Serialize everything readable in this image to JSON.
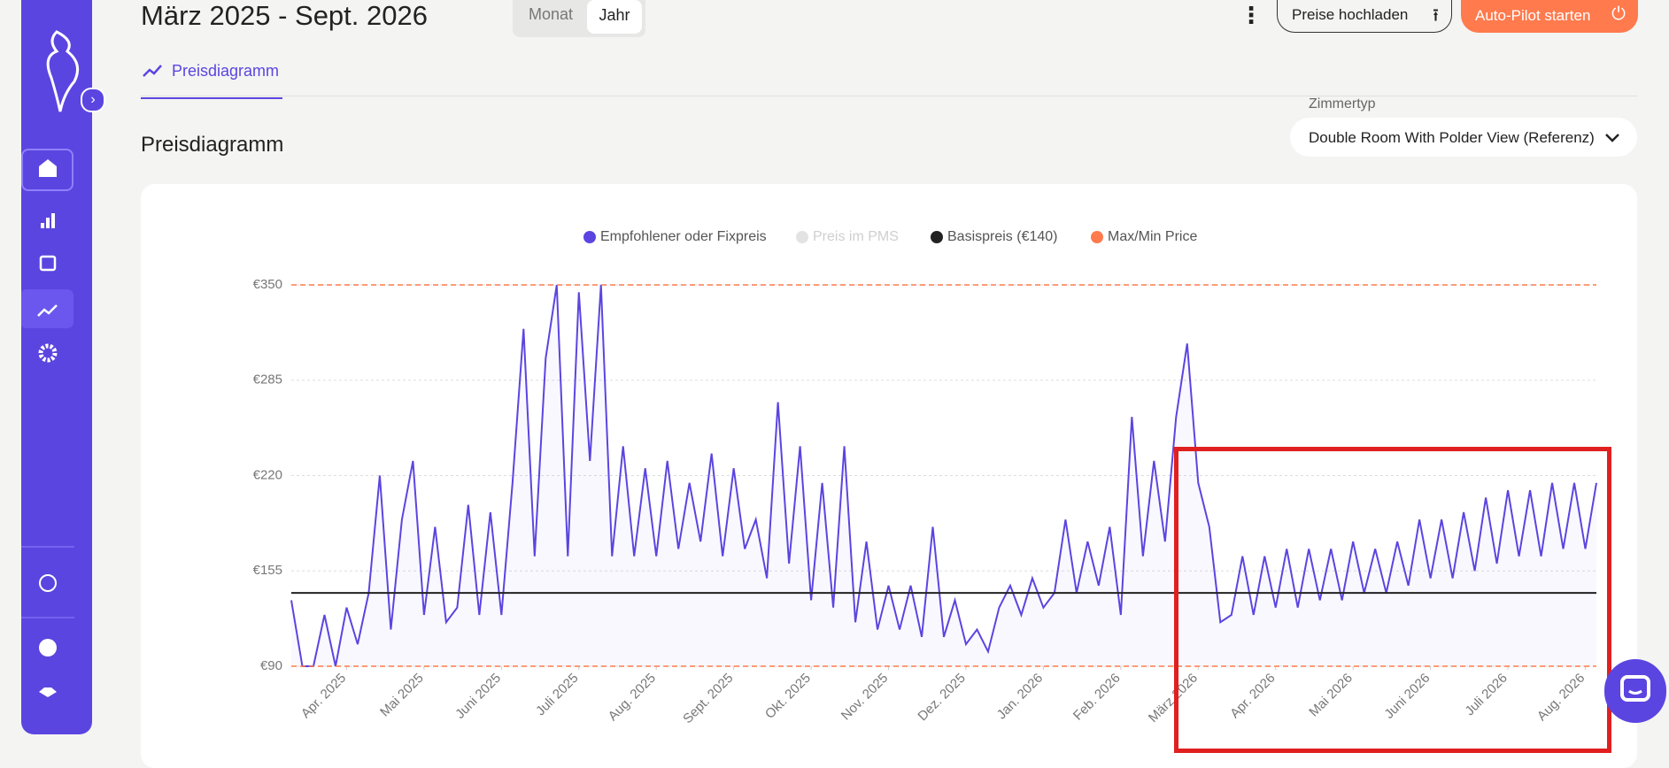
{
  "ui": {
    "date_range": "März 2025 - Sept. 2026",
    "view_toggle": [
      "Monat",
      "Jahr"
    ],
    "upload_button": "Preise hochladen",
    "autopilot_button": "Auto-Pilot starten",
    "tab": "Preisdiagramm",
    "section_title": "Preisdiagramm",
    "room_type_label": "Zimmertyp",
    "room_type_value": "Double Room With Polder View (Referenz)"
  },
  "chart_data": {
    "type": "line",
    "series": [
      {
        "name": "Empfohlener oder Fixpreis",
        "color": "#5b45e0",
        "values": [
          135,
          90,
          90,
          125,
          90,
          130,
          105,
          140,
          220,
          115,
          190,
          230,
          125,
          185,
          120,
          130,
          200,
          125,
          195,
          125,
          215,
          320,
          165,
          300,
          350,
          165,
          345,
          230,
          350,
          165,
          240,
          165,
          225,
          165,
          230,
          170,
          215,
          175,
          235,
          165,
          225,
          170,
          190,
          150,
          270,
          160,
          240,
          135,
          215,
          130,
          240,
          120,
          175,
          115,
          145,
          115,
          145,
          110,
          185,
          110,
          135,
          105,
          115,
          100,
          130,
          145,
          125,
          150,
          130,
          140,
          190,
          140,
          175,
          145,
          185,
          125,
          260,
          165,
          230,
          175,
          260,
          310,
          215,
          185,
          120,
          125,
          165,
          125,
          165,
          130,
          170,
          130,
          170,
          135,
          170,
          135,
          175,
          140,
          170,
          140,
          175,
          145,
          190,
          150,
          190,
          150,
          195,
          155,
          205,
          160,
          210,
          165,
          210,
          165,
          215,
          170,
          215,
          170,
          215
        ]
      },
      {
        "name": "Preis im PMS",
        "color": "#e3e3e3",
        "hidden": true
      },
      {
        "name": "Basispreis (€140)",
        "color": "#222222",
        "value": 140
      },
      {
        "name": "Max/Min Price",
        "color": "#ff7a4d",
        "values": [
          350,
          90
        ],
        "dashed": true
      }
    ],
    "xlim": [
      0,
      118
    ],
    "xticks": [
      {
        "value": 5,
        "label": "Apr. 2025"
      },
      {
        "value": 12,
        "label": "Mai 2025"
      },
      {
        "value": 19,
        "label": "Juni 2025"
      },
      {
        "value": 26,
        "label": "Juli 2025"
      },
      {
        "value": 33,
        "label": "Aug. 2025"
      },
      {
        "value": 40,
        "label": "Sept. 2025"
      },
      {
        "value": 47,
        "label": "Okt. 2025"
      },
      {
        "value": 54,
        "label": "Nov. 2025"
      },
      {
        "value": 61,
        "label": "Dez. 2025"
      },
      {
        "value": 68,
        "label": "Jan. 2026"
      },
      {
        "value": 75,
        "label": "Feb. 2026"
      },
      {
        "value": 82,
        "label": "März 2026"
      },
      {
        "value": 89,
        "label": "Apr. 2026"
      },
      {
        "value": 96,
        "label": "Mai 2026"
      },
      {
        "value": 103,
        "label": "Juni 2026"
      },
      {
        "value": 110,
        "label": "Juli 2026"
      },
      {
        "value": 117,
        "label": "Aug. 2026"
      }
    ],
    "ylim": [
      90,
      350
    ],
    "yticks": [
      {
        "value": 90,
        "label": "€90"
      },
      {
        "value": 155,
        "label": "€155"
      },
      {
        "value": 220,
        "label": "€220"
      },
      {
        "value": 285,
        "label": "€285"
      },
      {
        "value": 350,
        "label": "€350"
      }
    ],
    "grid": true
  }
}
